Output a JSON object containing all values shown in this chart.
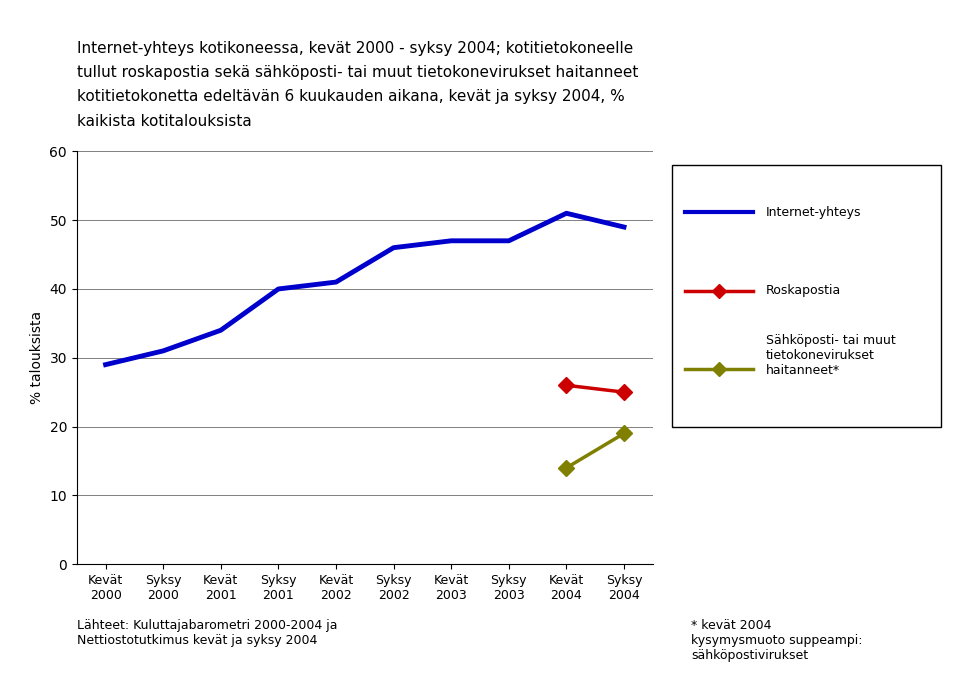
{
  "x_labels": [
    "Kevät\n2000",
    "Syksy\n2000",
    "Kevät\n2001",
    "Syksy\n2001",
    "Kevät\n2002",
    "Syksy\n2002",
    "Kevät\n2003",
    "Syksy\n2003",
    "Kevät\n2004",
    "Syksy\n2004"
  ],
  "internet_yhteys": [
    29,
    31,
    34,
    40,
    41,
    46,
    47,
    47,
    51,
    49
  ],
  "roskapostia": [
    null,
    null,
    null,
    null,
    null,
    null,
    null,
    null,
    26,
    25
  ],
  "sahkoposti_virukset": [
    null,
    null,
    null,
    null,
    null,
    null,
    null,
    null,
    14,
    19
  ],
  "internet_color": "#0000cc",
  "roskapostia_color": "#cc0000",
  "virus_color": "#808000",
  "ylim": [
    0,
    60
  ],
  "yticks": [
    0,
    10,
    20,
    30,
    40,
    50,
    60
  ],
  "ylabel": "% talouksista",
  "legend_internet": "Internet-yhteys",
  "legend_roskapostia": "Roskapostia",
  "legend_virus": "Sähköposti- tai muut\ntietokonevirukset\nhaitanneet*",
  "title_line1": "Internet-yhteys kotikoneessa, kevät 2000 - syksy 2004; kotitietokoneelle",
  "title_line2": "tullut roskapostia sekä sähköposti- tai muut tietokonevirukset haitanneet",
  "title_line3": "kotitietokonetta edeltävän 6 kuukauden aikana, kevät ja syksy 2004, %",
  "title_line4": "kaikista kotitalouksista",
  "footer_left": "Lähteet: Kuluttajabarometri 2000-2004 ja\nNettiostotutkimus kevät ja syksy 2004",
  "footer_right": "* kevät 2004\nkysymysmuoto suppeampi:\nsähköpostivirukset"
}
